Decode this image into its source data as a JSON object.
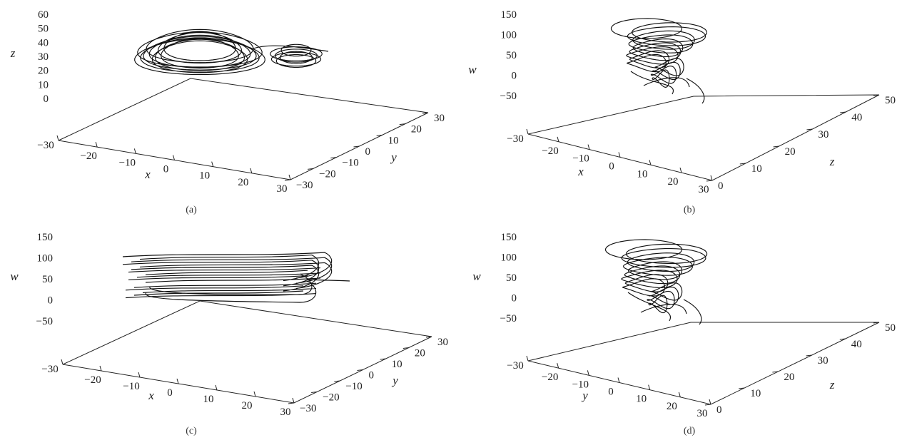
{
  "chart_data": [
    {
      "type": "line",
      "panel": "(a)",
      "axes": {
        "horizontal_1": "x",
        "horizontal_2": "y",
        "vertical": "z"
      },
      "xlabel": "x",
      "ylabel": "y",
      "zlabel": "z",
      "xlim": [
        -30,
        30
      ],
      "ylim": [
        -30,
        30
      ],
      "zlim": [
        0,
        60
      ],
      "xticks": [
        -30,
        -20,
        -10,
        0,
        10,
        20,
        30
      ],
      "yticks": [
        -30,
        -20,
        -10,
        0,
        10,
        20,
        30
      ],
      "zticks": [
        0,
        10,
        20,
        30,
        40,
        50,
        60
      ],
      "grid": false,
      "series": [
        {
          "attractor": {
            "cx": [
              -8,
              14
            ],
            "cy": [
              -8,
              14
            ],
            "w_center": 32,
            "rx": 16,
            "ry": 12,
            "hz": 6
          }
        }
      ]
    },
    {
      "type": "line",
      "panel": "(b)",
      "axes": {
        "horizontal_1": "x",
        "horizontal_2": "z",
        "vertical": "w"
      },
      "xlabel": "x",
      "ylabel": "z",
      "zlabel": "w",
      "xlim": [
        -30,
        30
      ],
      "ylim": [
        0,
        50
      ],
      "zlim": [
        -50,
        150
      ],
      "xticks": [
        -30,
        -20,
        -10,
        0,
        10,
        20,
        30
      ],
      "yticks": [
        0,
        10,
        20,
        30,
        40,
        50
      ],
      "zticks": [
        -50,
        0,
        50,
        100,
        150
      ],
      "grid": false,
      "series": [
        {
          "attractor": {
            "w_top": 115,
            "w_bottom": -40,
            "rx": 14,
            "ry": 10
          }
        }
      ]
    },
    {
      "type": "line",
      "panel": "(c)",
      "axes": {
        "horizontal_1": "x",
        "horizontal_2": "y",
        "vertical": "w"
      },
      "xlabel": "x",
      "ylabel": "y",
      "zlabel": "w",
      "xlim": [
        -30,
        30
      ],
      "ylim": [
        -30,
        30
      ],
      "zlim": [
        -50,
        150
      ],
      "xticks": [
        -30,
        -20,
        -10,
        0,
        10,
        20,
        30
      ],
      "yticks": [
        -30,
        -20,
        -10,
        0,
        10,
        20,
        30
      ],
      "zticks": [
        -50,
        0,
        50,
        100,
        150
      ],
      "grid": false,
      "series": [
        {
          "attractor": {
            "w_top": 110,
            "w_bottom": 15,
            "rx": 28,
            "ry": 6
          }
        }
      ]
    },
    {
      "type": "line",
      "panel": "(d)",
      "axes": {
        "horizontal_1": "y",
        "horizontal_2": "z",
        "vertical": "w"
      },
      "xlabel": "y",
      "ylabel": "z",
      "zlabel": "w",
      "xlim": [
        -30,
        30
      ],
      "ylim": [
        0,
        50
      ],
      "zlim": [
        -50,
        150
      ],
      "xticks": [
        -30,
        -20,
        -10,
        0,
        10,
        20,
        30
      ],
      "yticks": [
        0,
        10,
        20,
        30,
        40,
        50
      ],
      "zticks": [
        -50,
        0,
        50,
        100,
        150
      ],
      "grid": false,
      "series": [
        {
          "attractor": {
            "w_top": 125,
            "w_bottom": -45,
            "rx": 16,
            "ry": 10
          }
        }
      ]
    }
  ]
}
